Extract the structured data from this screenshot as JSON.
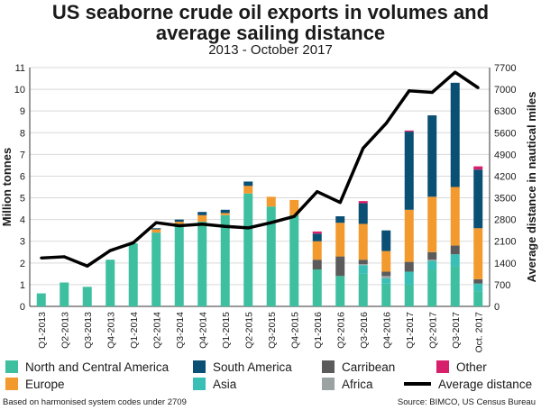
{
  "title": "US seaborne crude oil exports in volumes and average sailing distance",
  "subtitle": "2013 - October 2017",
  "chart_data": {
    "type": "bar",
    "stacked": true,
    "categories": [
      "Q1-2013",
      "Q2-2013",
      "Q3-2013",
      "Q4-2013",
      "Q1-2014",
      "Q2-2014",
      "Q3-2014",
      "Q4-2014",
      "Q1-2015",
      "Q2-2015",
      "Q3-2015",
      "Q4-2015",
      "Q1-2016",
      "Q2-2016",
      "Q3-2016",
      "Q4-2016",
      "Q1-2017",
      "Q2-2017",
      "Q3-2017",
      "Oct. 2017"
    ],
    "ylabel": "Million tonnes",
    "ylabel_right": "Average distance in nautical miles",
    "ylim": [
      0,
      11
    ],
    "yticks": [
      "0",
      "1",
      "2",
      "3",
      "4",
      "5",
      "6",
      "7",
      "8",
      "9",
      "10",
      "11"
    ],
    "ylim_right": [
      0,
      7700
    ],
    "yticks_right": [
      "0",
      "700",
      "1400",
      "2100",
      "2800",
      "3500",
      "4200",
      "4900",
      "5600",
      "6300",
      "7000",
      "7700"
    ],
    "series": [
      {
        "name": "North and Central America",
        "color": "#3dbfa0",
        "values": [
          0.6,
          1.1,
          0.9,
          2.15,
          2.9,
          3.4,
          3.8,
          3.9,
          4.2,
          5.2,
          4.6,
          4.2,
          1.7,
          1.4,
          1.5,
          1.05,
          1.0,
          1.7,
          1.85,
          0.7
        ]
      },
      {
        "name": "Asia",
        "color": "#39bfb5",
        "values": [
          0,
          0,
          0,
          0,
          0,
          0,
          0,
          0,
          0,
          0,
          0,
          0,
          0,
          0,
          0.4,
          0.25,
          0.6,
          0.4,
          0.55,
          0.35
        ]
      },
      {
        "name": "Africa",
        "color": "#9aa3a1",
        "values": [
          0,
          0,
          0,
          0,
          0,
          0,
          0,
          0,
          0,
          0,
          0,
          0,
          0,
          0,
          0.05,
          0.1,
          0,
          0.05,
          0,
          0
        ]
      },
      {
        "name": "Carribean",
        "color": "#5b5b5b",
        "values": [
          0,
          0,
          0,
          0,
          0,
          0,
          0,
          0,
          0,
          0,
          0,
          0,
          0.45,
          0.9,
          0.2,
          0.2,
          0.45,
          0.35,
          0.4,
          0.2
        ]
      },
      {
        "name": "Europe",
        "color": "#f39a2e",
        "values": [
          0,
          0,
          0,
          0,
          0,
          0.15,
          0.1,
          0.3,
          0.1,
          0.35,
          0.45,
          0.7,
          0.85,
          1.55,
          1.65,
          0.95,
          2.4,
          2.55,
          2.7,
          2.35
        ]
      },
      {
        "name": "South America",
        "color": "#0a4f74",
        "values": [
          0,
          0,
          0,
          0,
          0,
          0.05,
          0.1,
          0.15,
          0.15,
          0.2,
          0,
          0,
          0.35,
          0.3,
          0.95,
          0.95,
          3.6,
          3.75,
          4.8,
          2.7
        ]
      },
      {
        "name": "Other",
        "color": "#d81f6b",
        "values": [
          0,
          0,
          0,
          0,
          0,
          0,
          0,
          0,
          0,
          0,
          0,
          0,
          0.1,
          0,
          0.1,
          0,
          0.05,
          0,
          0,
          0.15
        ]
      }
    ],
    "line": {
      "name": "Average distance",
      "axis": "right",
      "color": "#000000",
      "values": [
        1560,
        1600,
        1300,
        1800,
        2050,
        2700,
        2600,
        2650,
        2580,
        2530,
        2700,
        2900,
        3700,
        3350,
        5100,
        5900,
        6950,
        6900,
        7550,
        7050
      ]
    },
    "grid": true,
    "legend_position": "bottom"
  },
  "legend": {
    "north_central_america": "North and Central America",
    "south_america": "South America",
    "carribean": "Carribean",
    "other": "Other",
    "europe": "Europe",
    "asia": "Asia",
    "africa": "Africa",
    "average_distance": "Average distance"
  },
  "colors": {
    "north_central_america": "#3dbfa0",
    "south_america": "#0a4f74",
    "carribean": "#5b5b5b",
    "other": "#d81f6b",
    "europe": "#f39a2e",
    "asia": "#39bfb5",
    "africa": "#9aa3a1"
  },
  "footer": {
    "note": "Based on harmonised system codes under 2709",
    "source": "Source: BIMCO, US Census Bureau"
  }
}
